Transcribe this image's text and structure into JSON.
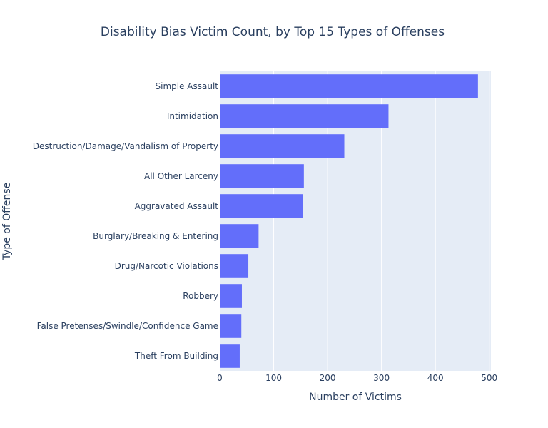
{
  "chart_data": {
    "type": "bar",
    "orientation": "horizontal",
    "title": "Disability Bias Victim Count, by Top 15 Types of Offenses",
    "xlabel": "Number of Victims",
    "ylabel": "Type of Offense",
    "xlim": [
      0,
      503
    ],
    "xticks": [
      0,
      100,
      200,
      300,
      400,
      500
    ],
    "grid": true,
    "categories": [
      "Simple Assault",
      "Intimidation",
      "Destruction/Damage/Vandalism of Property",
      "All Other Larceny",
      "Aggravated Assault",
      "Burglary/Breaking & Entering",
      "Drug/Narcotic Violations",
      "Robbery",
      "False Pretenses/Swindle/Confidence Game",
      "Theft From Building"
    ],
    "values": [
      479,
      313,
      231,
      156,
      154,
      72,
      53,
      41,
      40,
      37
    ],
    "colors": {
      "bar": "#636efa",
      "plot_bg": "#e5ecf6",
      "grid": "#ffffff",
      "text": "#2a3f5f"
    }
  }
}
